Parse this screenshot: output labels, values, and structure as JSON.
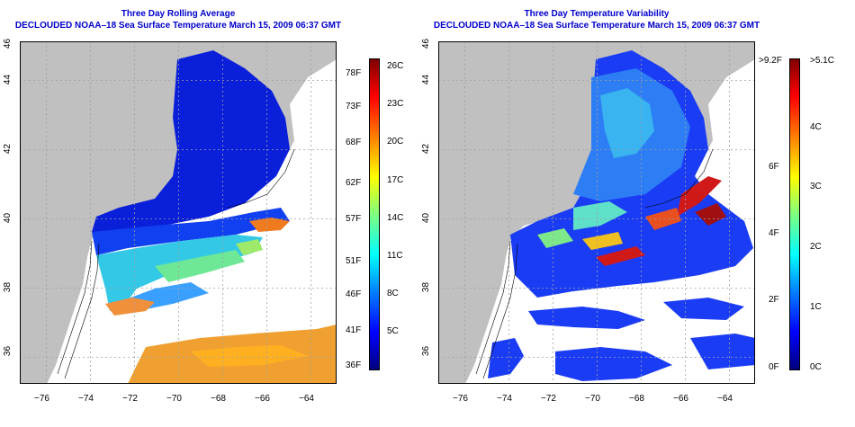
{
  "panels": [
    {
      "title": "Three Day Rolling Average",
      "subtitle": "DECLOUDED NOAA–18 Sea Surface Temperature March 15, 2009 06:37 GMT",
      "x_ticks": [
        "−76",
        "−74",
        "−72",
        "−70",
        "−68",
        "−66",
        "−64"
      ],
      "y_ticks": [
        "36",
        "38",
        "40",
        "42",
        "44",
        "46"
      ],
      "colorbar": {
        "left_labels": [
          "78F",
          "73F",
          "68F",
          "62F",
          "57F",
          "51F",
          "46F",
          "41F",
          "36F"
        ],
        "right_labels": [
          "26C",
          "23C",
          "20C",
          "17C",
          "14C",
          "11C",
          "8C",
          "5C"
        ],
        "colors": [
          "#00007f",
          "#0000ff",
          "#007fff",
          "#00ffff",
          "#7fff7f",
          "#ffff00",
          "#ff7f00",
          "#ff0000",
          "#7f0000"
        ]
      }
    },
    {
      "title": "Three Day Temperature Variability",
      "subtitle": "DECLOUDED NOAA–18 Sea Surface Temperature March 15, 2009 06:37 GMT",
      "x_ticks": [
        "−76",
        "−74",
        "−72",
        "−70",
        "−68",
        "−66",
        "−64"
      ],
      "y_ticks": [
        "36",
        "38",
        "40",
        "42",
        "44",
        "46"
      ],
      "colorbar": {
        "left_labels": [
          ">9.2F",
          "6F",
          "4F",
          "2F",
          "0F"
        ],
        "right_labels": [
          ">5.1C",
          "4C",
          "3C",
          "2C",
          "1C",
          "0C"
        ],
        "colors": [
          "#00007f",
          "#0000ff",
          "#007fff",
          "#00ffff",
          "#7fff7f",
          "#ffff00",
          "#ff7f00",
          "#ff0000",
          "#7f0000"
        ]
      }
    }
  ],
  "colors": {
    "land": "#c0c0c0",
    "no_data": "#ffffff",
    "title": "#0000cc",
    "grid": "#a0a0a0"
  }
}
